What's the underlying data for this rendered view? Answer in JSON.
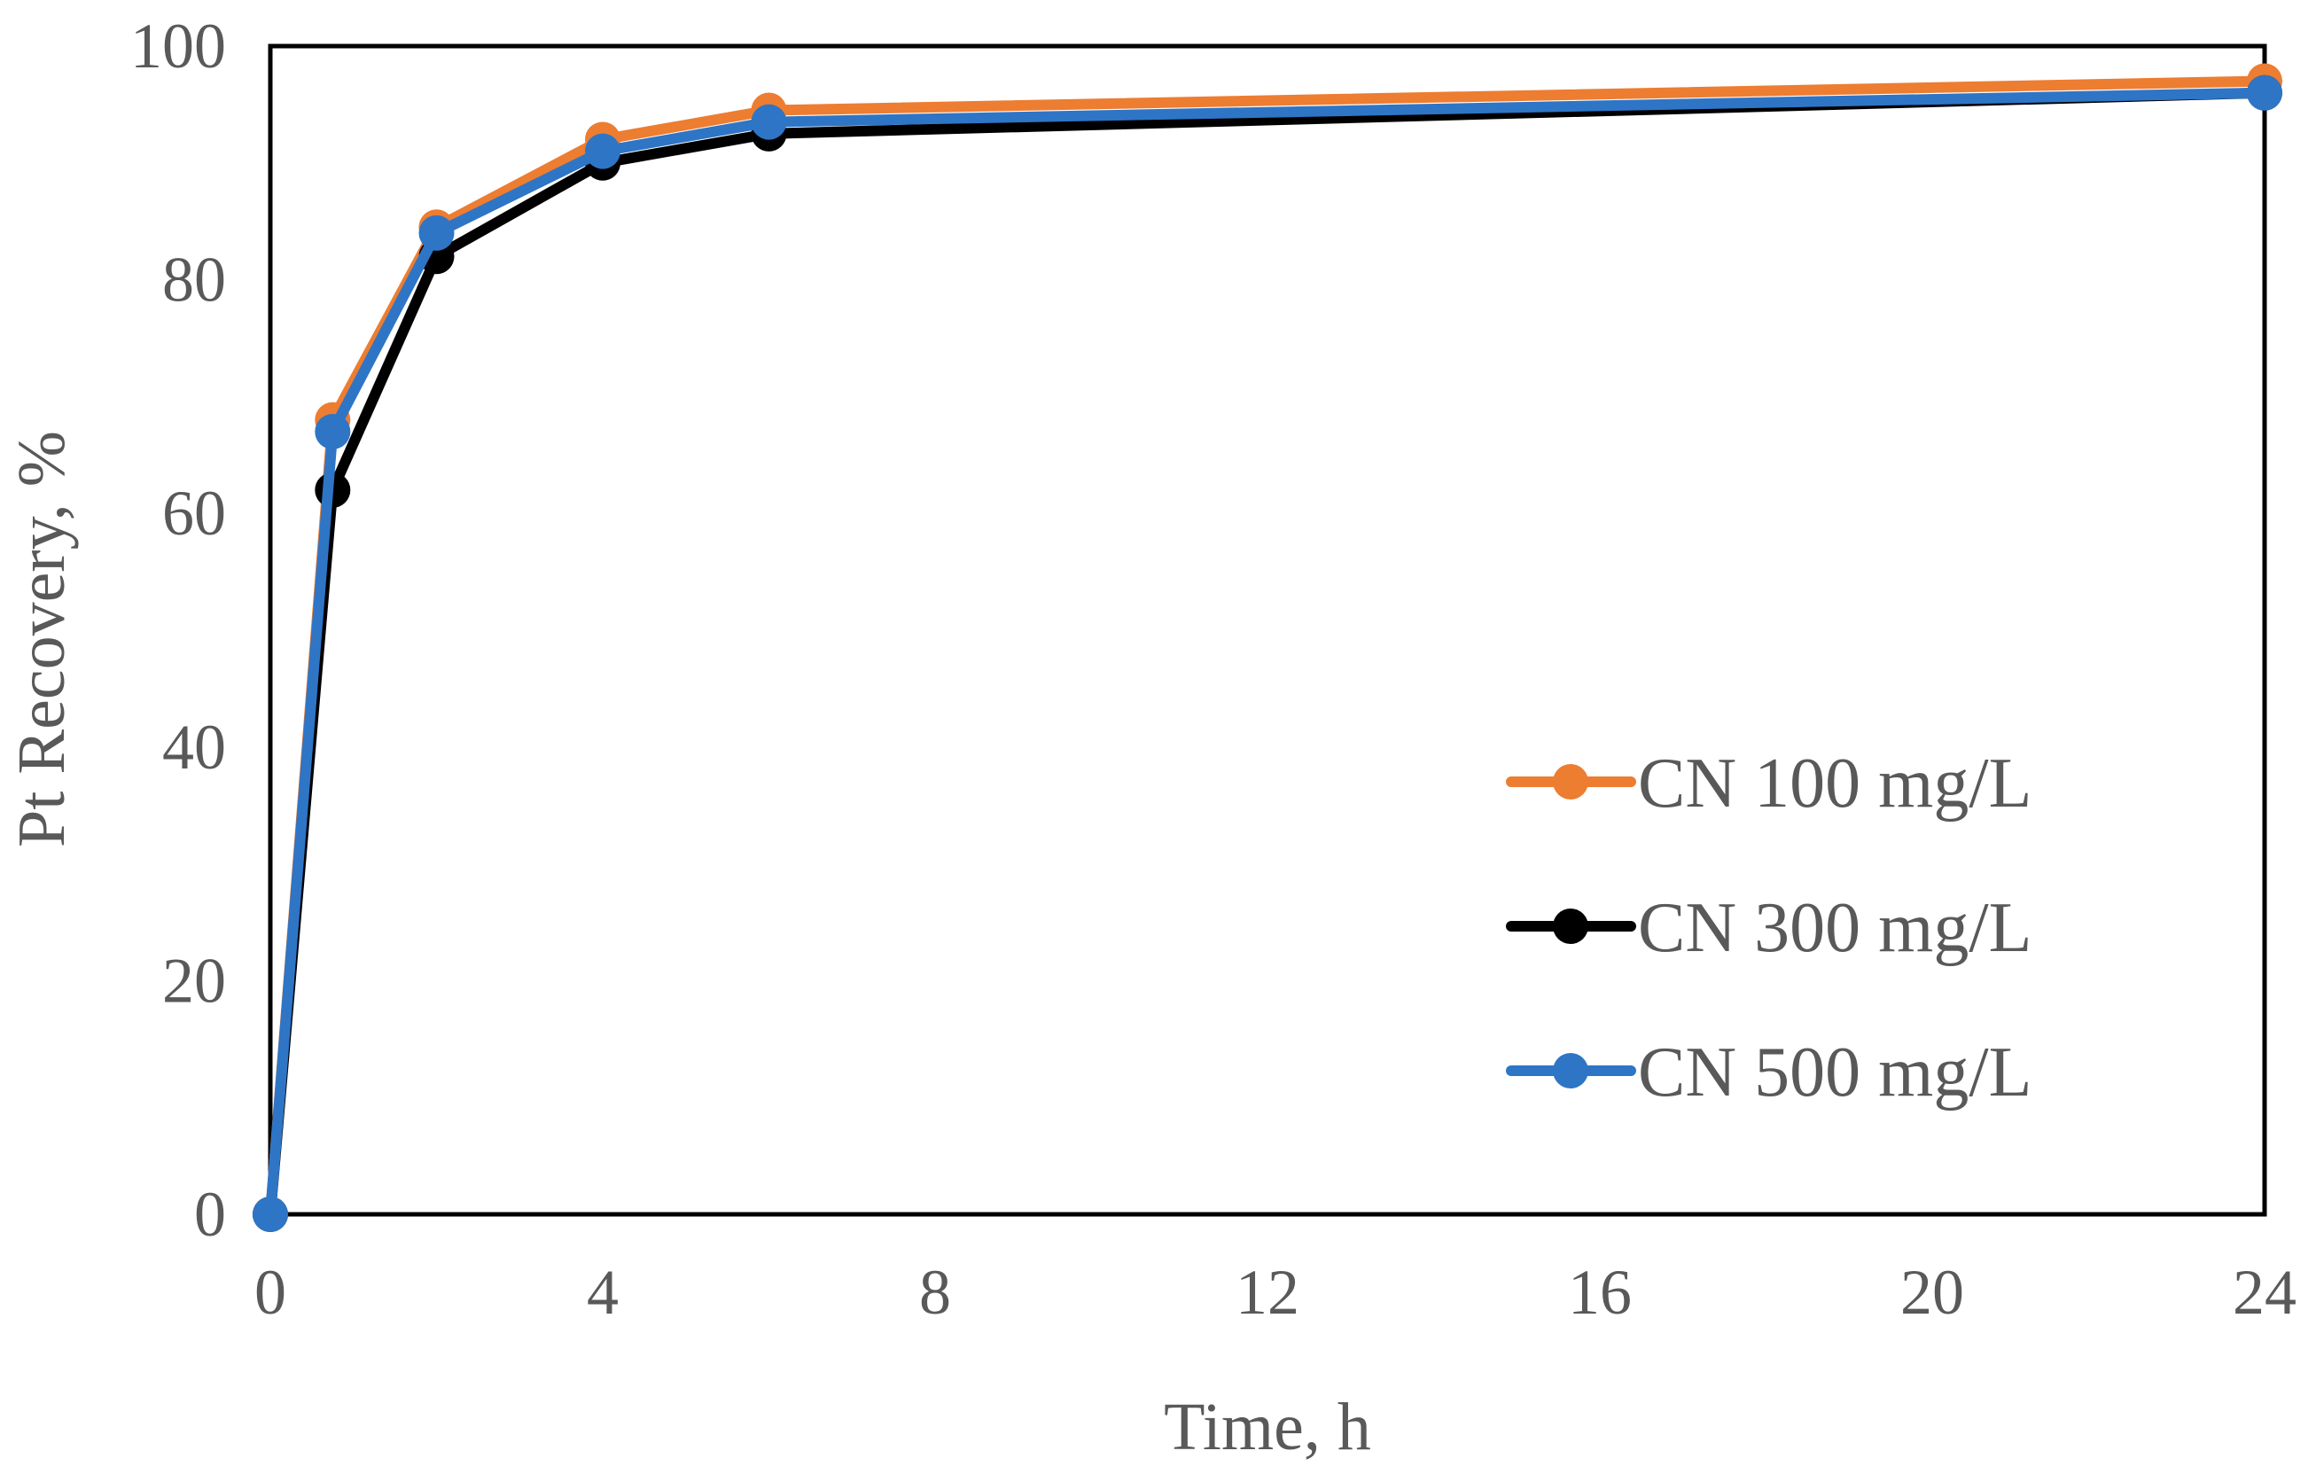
{
  "chart_data": {
    "type": "line",
    "title": "",
    "xlabel": "Time, h",
    "ylabel": "Pt Recovery, %",
    "xlim": [
      0,
      24
    ],
    "ylim": [
      0,
      100
    ],
    "xticks": [
      0,
      4,
      8,
      12,
      16,
      20,
      24
    ],
    "yticks": [
      0,
      20,
      40,
      60,
      80,
      100
    ],
    "grid": false,
    "legend_position": "right-middle",
    "x": [
      0,
      0.75,
      2,
      4,
      6,
      24
    ],
    "series": [
      {
        "name": "CN 100 mg/L",
        "color": "#ED7D31",
        "values": [
          0,
          68,
          84.5,
          92,
          94.5,
          97
        ]
      },
      {
        "name": "CN 300 mg/L",
        "color": "#000000",
        "values": [
          0,
          62,
          82,
          90,
          92.5,
          96
        ]
      },
      {
        "name": "CN 500 mg/L",
        "color": "#2E75C6",
        "values": [
          0,
          67,
          84,
          91,
          93.5,
          96
        ]
      }
    ]
  }
}
